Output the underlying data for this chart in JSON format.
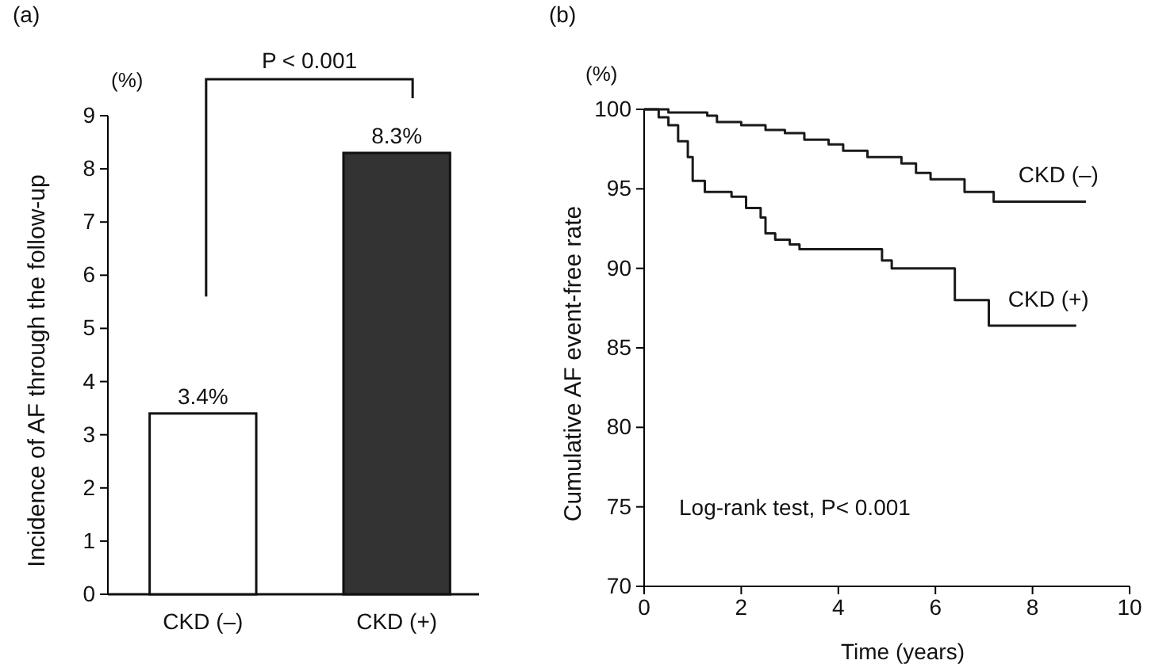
{
  "chart_data": [
    {
      "type": "bar",
      "title": "(a)",
      "ylabel": "Incidence of AF through the follow-up",
      "annotations": [
        "(%)",
        "P < 0.001"
      ],
      "categories": [
        "CKD (–)",
        "CKD (+)"
      ],
      "values": [
        3.4,
        8.3
      ],
      "value_labels": [
        "3.4%",
        "8.3%"
      ],
      "colors": [
        "#ffffff",
        "#333333"
      ],
      "ylim": [
        0,
        9
      ],
      "yticks": [
        0,
        1,
        2,
        3,
        4,
        5,
        6,
        7,
        8,
        9
      ],
      "grid": false
    },
    {
      "type": "step",
      "title": "(b)",
      "xlabel": "Time (years)",
      "ylabel": "Cumulative AF event-free rate",
      "annotations": [
        "(%)",
        "Log-rank test, P< 0.001"
      ],
      "series": [
        {
          "name": "CKD (–)",
          "color": "#1a1a1a",
          "x": [
            0,
            0.5,
            1.3,
            1.5,
            2.0,
            2.5,
            2.9,
            3.3,
            3.8,
            4.1,
            4.6,
            5.3,
            5.6,
            5.9,
            6.6,
            7.2,
            9.1
          ],
          "values": [
            100,
            99.8,
            99.6,
            99.2,
            99.0,
            98.7,
            98.5,
            98.1,
            97.8,
            97.4,
            97.0,
            96.6,
            96.0,
            95.6,
            94.8,
            94.2,
            94.2
          ]
        },
        {
          "name": "CKD (+)",
          "color": "#1a1a1a",
          "x": [
            0,
            0.3,
            0.5,
            0.7,
            0.9,
            1.0,
            1.25,
            1.8,
            2.1,
            2.4,
            2.5,
            2.7,
            3.0,
            3.2,
            4.9,
            5.1,
            6.4,
            7.1,
            8.9
          ],
          "values": [
            100,
            99.5,
            99.0,
            98.0,
            97.0,
            95.5,
            94.8,
            94.5,
            93.8,
            93.2,
            92.2,
            91.8,
            91.5,
            91.2,
            90.5,
            90.0,
            88.0,
            86.4,
            86.4
          ]
        }
      ],
      "xlim": [
        0,
        10
      ],
      "xticks": [
        0,
        2,
        4,
        6,
        8,
        10
      ],
      "ylim": [
        70,
        100
      ],
      "yticks": [
        70,
        75,
        80,
        85,
        90,
        95,
        100
      ],
      "grid": false
    }
  ]
}
